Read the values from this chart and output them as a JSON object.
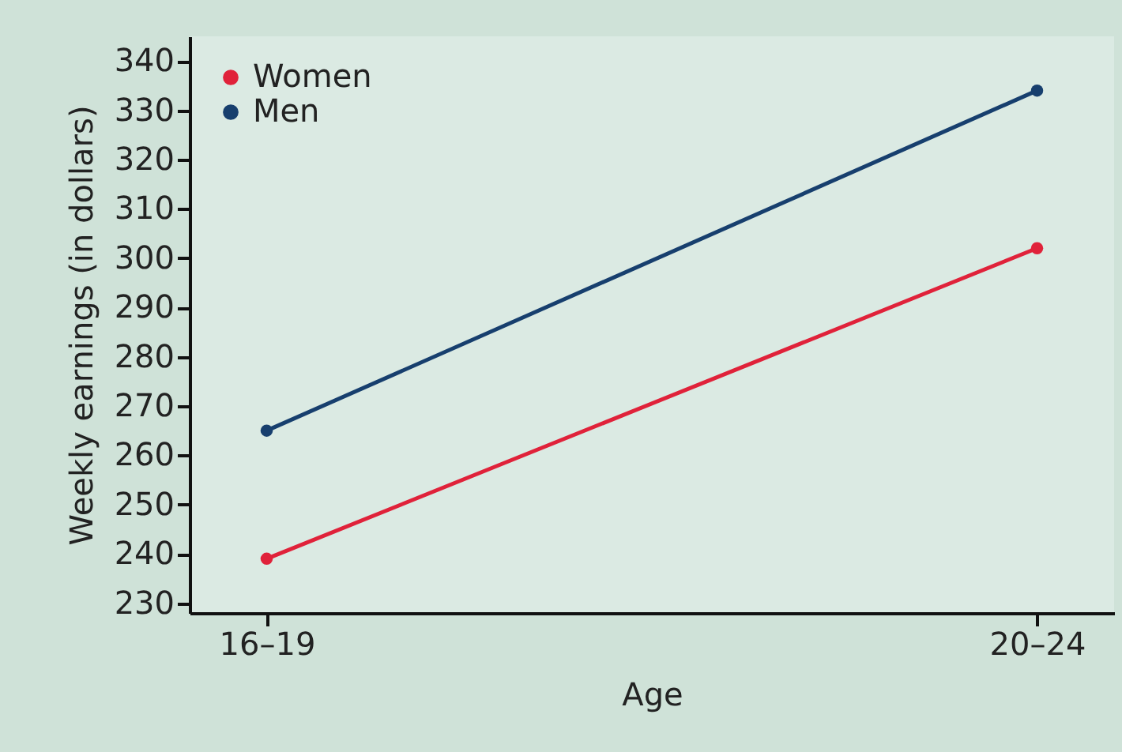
{
  "chart_data": {
    "type": "line",
    "xlabel": "Age",
    "ylabel": "Weekly earnings (in dollars)",
    "categories": [
      "16–19",
      "20–24"
    ],
    "series": [
      {
        "name": "Women",
        "color": "#e0223a",
        "values": [
          239,
          302
        ]
      },
      {
        "name": "Men",
        "color": "#173f6e",
        "values": [
          265,
          334
        ]
      }
    ],
    "ylim": [
      228,
      345
    ],
    "yticks": [
      230,
      240,
      250,
      260,
      270,
      280,
      290,
      300,
      310,
      320,
      330,
      340
    ],
    "grid": false,
    "legend": "top left",
    "marker": "circle",
    "line_style": "solid"
  }
}
